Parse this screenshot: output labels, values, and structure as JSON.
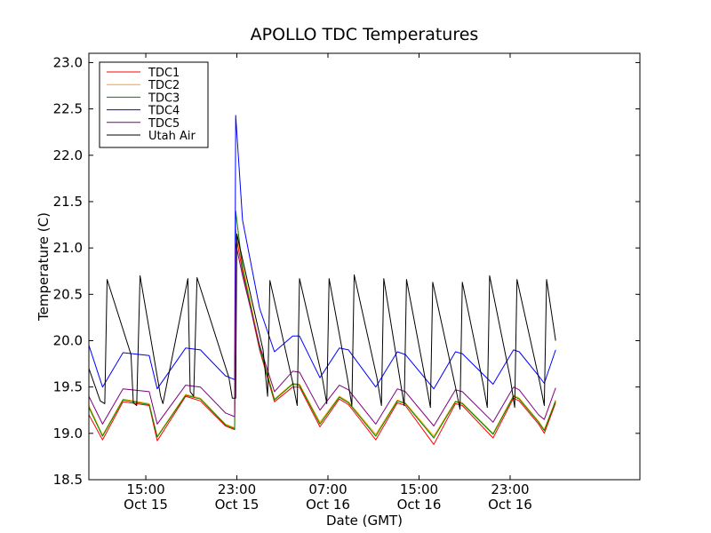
{
  "chart_data": {
    "type": "line",
    "title": "APOLLO TDC Temperatures",
    "xlabel": "Date (GMT)",
    "ylabel": "Temperature (C)",
    "xlim": [
      10,
      58.4
    ],
    "ylim": [
      18.5,
      23.1
    ],
    "yticks": [
      18.5,
      19.0,
      19.5,
      20.0,
      20.5,
      21.0,
      21.5,
      22.0,
      22.5,
      23.0
    ],
    "ytick_labels": [
      "18.5",
      "19.0",
      "19.5",
      "20.0",
      "20.5",
      "21.0",
      "21.5",
      "22.0",
      "22.5",
      "23.0"
    ],
    "xticks": [
      {
        "x": 15,
        "time": "15:00",
        "date": "Oct 15"
      },
      {
        "x": 23,
        "time": "23:00",
        "date": "Oct 15"
      },
      {
        "x": 31,
        "time": "07:00",
        "date": "Oct 16"
      },
      {
        "x": 39,
        "time": "15:00",
        "date": "Oct 16"
      },
      {
        "x": 47,
        "time": "23:00",
        "date": "Oct 16"
      }
    ],
    "x_unit": "hours since Oct 15 00:00 GMT",
    "legend_position": "top-left",
    "grid": false,
    "series": [
      {
        "name": "TDC1",
        "color": "#ff0000",
        "x": [
          10.0,
          11.2,
          13.0,
          15.3,
          16.0,
          18.5,
          19.8,
          22.0,
          22.8,
          22.9,
          23.5,
          25.0,
          26.3,
          27.9,
          28.5,
          30.3,
          32.0,
          32.8,
          35.2,
          37.1,
          37.8,
          40.3,
          42.2,
          42.8,
          45.5,
          47.3,
          47.8,
          49.5,
          50.0,
          51.0
        ],
        "y": [
          19.2,
          18.93,
          19.34,
          19.3,
          18.92,
          19.4,
          19.35,
          19.08,
          19.04,
          21.15,
          20.75,
          19.9,
          19.34,
          19.5,
          19.5,
          19.07,
          19.37,
          19.31,
          18.93,
          19.33,
          19.3,
          18.88,
          19.32,
          19.3,
          18.95,
          19.38,
          19.35,
          19.1,
          19.0,
          19.33
        ]
      },
      {
        "name": "TDC2",
        "color": "#ffa500",
        "x": [
          10.0,
          11.2,
          13.0,
          15.3,
          16.0,
          18.5,
          19.8,
          22.0,
          22.8,
          22.9,
          23.5,
          25.0,
          26.3,
          27.9,
          28.5,
          30.3,
          32.0,
          32.8,
          35.2,
          37.1,
          37.8,
          40.3,
          42.2,
          42.8,
          45.5,
          47.3,
          47.8,
          49.5,
          50.0,
          51.0
        ],
        "y": [
          19.3,
          18.98,
          19.37,
          19.32,
          18.97,
          19.42,
          19.38,
          19.1,
          19.06,
          21.2,
          20.82,
          19.95,
          19.37,
          19.54,
          19.53,
          19.12,
          19.4,
          19.34,
          18.99,
          19.36,
          19.33,
          18.97,
          19.35,
          19.33,
          19.0,
          19.41,
          19.38,
          19.13,
          19.04,
          19.36
        ]
      },
      {
        "name": "TDC3",
        "color": "#008000",
        "x": [
          10.0,
          11.2,
          13.0,
          15.3,
          16.0,
          18.5,
          19.8,
          22.0,
          22.8,
          22.9,
          23.5,
          25.0,
          26.3,
          27.9,
          28.5,
          30.3,
          32.0,
          32.8,
          35.2,
          37.1,
          37.8,
          40.3,
          42.2,
          42.8,
          45.5,
          47.3,
          47.8,
          49.5,
          50.0,
          51.0
        ],
        "y": [
          19.28,
          18.97,
          19.36,
          19.31,
          18.96,
          19.41,
          19.37,
          19.09,
          19.05,
          21.4,
          20.78,
          19.92,
          19.36,
          19.53,
          19.52,
          19.1,
          19.39,
          19.33,
          18.97,
          19.35,
          19.32,
          18.95,
          19.34,
          19.32,
          18.99,
          19.4,
          19.37,
          19.12,
          19.03,
          19.35
        ]
      },
      {
        "name": "TDC4",
        "color": "#0000ff",
        "x": [
          10.0,
          11.2,
          13.0,
          15.3,
          16.0,
          18.5,
          19.8,
          22.0,
          22.8,
          22.9,
          23.5,
          25.0,
          26.3,
          27.9,
          28.5,
          30.3,
          32.0,
          32.8,
          35.2,
          37.1,
          37.8,
          40.3,
          42.2,
          42.8,
          45.5,
          47.3,
          47.8,
          49.5,
          50.0,
          51.0
        ],
        "y": [
          19.95,
          19.5,
          19.87,
          19.84,
          19.48,
          19.92,
          19.9,
          19.62,
          19.58,
          22.43,
          21.3,
          20.35,
          19.88,
          20.05,
          20.05,
          19.6,
          19.92,
          19.9,
          19.5,
          19.88,
          19.85,
          19.48,
          19.88,
          19.86,
          19.53,
          19.9,
          19.88,
          19.62,
          19.54,
          19.9
        ]
      },
      {
        "name": "TDC5",
        "color": "#800080",
        "x": [
          10.0,
          11.2,
          13.0,
          15.3,
          16.0,
          18.5,
          19.8,
          22.0,
          22.8,
          22.9,
          23.5,
          25.0,
          26.3,
          27.9,
          28.5,
          30.3,
          32.0,
          32.8,
          35.2,
          37.1,
          37.8,
          40.3,
          42.2,
          42.8,
          45.5,
          47.3,
          47.8,
          49.5,
          50.0,
          51.0
        ],
        "y": [
          19.4,
          19.1,
          19.48,
          19.45,
          19.1,
          19.52,
          19.5,
          19.22,
          19.18,
          21.05,
          20.7,
          19.95,
          19.45,
          19.67,
          19.66,
          19.25,
          19.52,
          19.47,
          19.1,
          19.48,
          19.45,
          19.08,
          19.47,
          19.45,
          19.12,
          19.5,
          19.47,
          19.2,
          19.15,
          19.49
        ]
      },
      {
        "name": "Utah Air",
        "color": "#000000",
        "x": [
          10.0,
          11.0,
          11.4,
          11.6,
          13.7,
          13.9,
          14.2,
          14.5,
          16.3,
          16.5,
          18.7,
          18.9,
          19.2,
          19.5,
          22.3,
          22.6,
          22.9,
          23.0,
          25.3,
          25.7,
          25.9,
          27.9,
          28.3,
          28.5,
          30.5,
          30.9,
          31.1,
          32.7,
          33.1,
          33.3,
          35.3,
          35.7,
          35.9,
          37.3,
          37.7,
          37.9,
          39.6,
          40.0,
          40.2,
          42.2,
          42.6,
          42.8,
          44.6,
          45.0,
          45.2,
          47.0,
          47.4,
          47.6,
          49.6,
          50.0,
          50.2,
          51.0
        ],
        "y": [
          19.7,
          19.35,
          19.32,
          20.66,
          19.85,
          19.33,
          19.3,
          20.7,
          19.4,
          19.32,
          20.67,
          19.45,
          19.4,
          20.68,
          19.6,
          19.38,
          19.38,
          21.15,
          19.9,
          19.4,
          20.65,
          19.55,
          19.3,
          20.67,
          19.6,
          19.32,
          20.67,
          19.6,
          19.3,
          20.71,
          19.6,
          19.3,
          20.67,
          19.6,
          19.3,
          20.66,
          19.55,
          19.28,
          20.63,
          19.5,
          19.26,
          20.63,
          19.55,
          19.28,
          20.7,
          19.6,
          19.28,
          20.66,
          19.55,
          19.3,
          20.66,
          20.0
        ]
      }
    ]
  }
}
